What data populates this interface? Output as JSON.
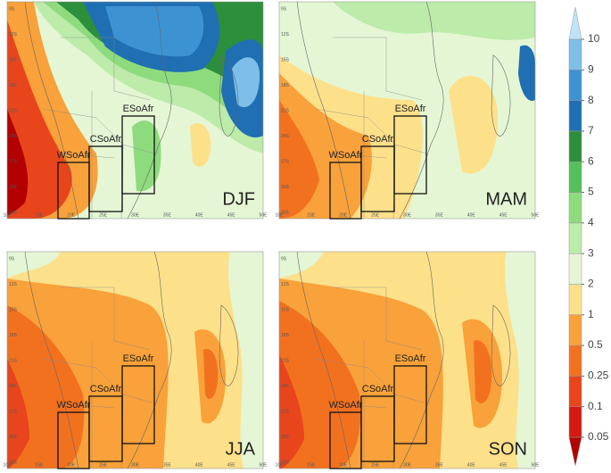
{
  "panels": [
    {
      "label": "DJF"
    },
    {
      "label": "MAM"
    },
    {
      "label": "JJA"
    },
    {
      "label": "SON"
    }
  ],
  "regions": [
    {
      "name": "WSoAfr"
    },
    {
      "name": "CSoAfr"
    },
    {
      "name": "ESoAfr"
    }
  ],
  "x_ticks": [
    "10E",
    "15E",
    "20E",
    "25E",
    "30E",
    "35E",
    "40E",
    "45E",
    "50E"
  ],
  "y_ticks": [
    "9S",
    "12S",
    "15S",
    "18S",
    "21S",
    "24S",
    "27S",
    "30S",
    "33S"
  ],
  "colorbar": {
    "levels": [
      0.05,
      0.1,
      0.25,
      0.5,
      1,
      2,
      3,
      4,
      5,
      6,
      7,
      8,
      9,
      10
    ],
    "colors": [
      "#b30000",
      "#d41a12",
      "#e8451c",
      "#f2711f",
      "#f9a13a",
      "#fde08a",
      "#e4f6d4",
      "#bcebaa",
      "#8edb7e",
      "#55c05a",
      "#2b8f3c",
      "#1f6fb2",
      "#3d93d2",
      "#7dbfe9",
      "#bfe3f7"
    ]
  }
}
